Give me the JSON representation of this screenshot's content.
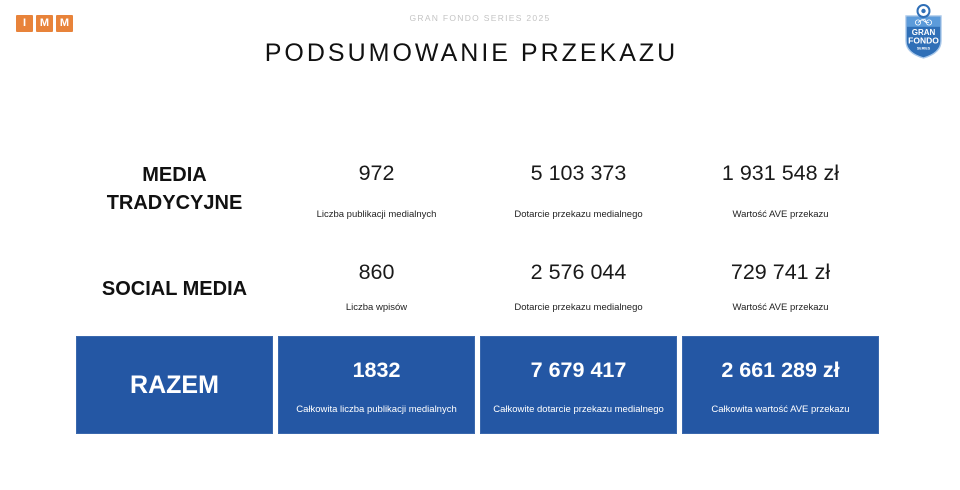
{
  "header": {
    "series_label": "GRAN FONDO SERIES 2025",
    "title": "PODSUMOWANIE PRZEKAZU",
    "imm_logo": {
      "letters": [
        "I",
        "M",
        "M"
      ]
    },
    "gran_fondo_logo": {
      "lines": [
        "GRAN",
        "FONDO",
        "SERIES"
      ],
      "icon": "bicycle-icon"
    }
  },
  "rows": [
    {
      "label_lines": [
        "MEDIA",
        "TRADYCYJNE"
      ],
      "stats": [
        {
          "value": "972",
          "caption": "Liczba publikacji medialnych"
        },
        {
          "value": "5 103 373",
          "caption": "Dotarcie przekazu medialnego"
        },
        {
          "value": "1 931 548 zł",
          "caption": "Wartość AVE przekazu"
        }
      ]
    },
    {
      "label_lines": [
        "SOCIAL MEDIA"
      ],
      "stats": [
        {
          "value": "860",
          "caption": "Liczba wpisów"
        },
        {
          "value": "2 576 044",
          "caption": "Dotarcie przekazu medialnego"
        },
        {
          "value": "729 741 zł",
          "caption": "Wartość AVE przekazu"
        }
      ]
    }
  ],
  "total": {
    "label": "RAZEM",
    "stats": [
      {
        "value": "1832",
        "caption": "Całkowita liczba publikacji medialnych"
      },
      {
        "value": "7 679 417",
        "caption": "Całkowite dotarcie przekazu medialnego"
      },
      {
        "value": "2 661 289 zł",
        "caption": "Całkowita wartość AVE przekazu"
      }
    ]
  },
  "colors": {
    "accent": "#2457A4",
    "logo_orange": "#E8833A",
    "logo_blue": "#2F6FB7",
    "text": "#1A1A1A",
    "muted": "#C4C4C4"
  }
}
